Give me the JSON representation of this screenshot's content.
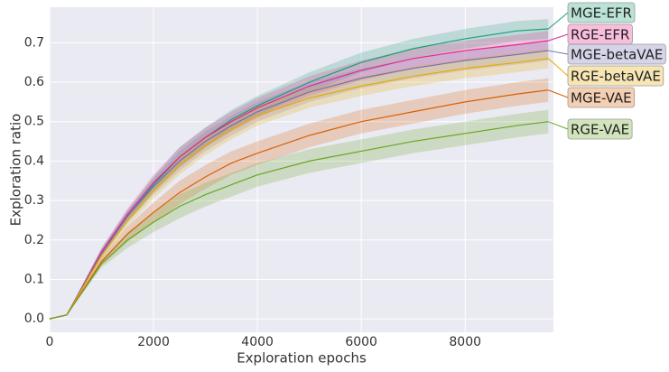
{
  "chart_data": {
    "type": "line",
    "xlabel": "Exploration epochs",
    "ylabel": "Exploration ratio",
    "x": [
      0,
      330,
      1000,
      1500,
      2000,
      2500,
      3000,
      3500,
      4000,
      5000,
      6000,
      7000,
      8000,
      9000,
      9600
    ],
    "xlim": [
      0,
      9700
    ],
    "xticks": [
      0,
      2000,
      4000,
      6000,
      8000
    ],
    "ylim": [
      -0.034,
      0.79
    ],
    "yticks": [
      {
        "value": 0,
        "label": "0.0"
      },
      0.1,
      0.2,
      0.3,
      0.4,
      0.5,
      0.6,
      0.7
    ],
    "grid": true,
    "series": [
      {
        "name": "MGE-EFR",
        "color": "#1b9e77",
        "values": [
          0,
          0.01,
          0.17,
          0.26,
          0.34,
          0.41,
          0.46,
          0.505,
          0.54,
          0.6,
          0.65,
          0.685,
          0.71,
          0.73,
          0.735
        ],
        "error": [
          0,
          0,
          0.01,
          0.015,
          0.02,
          0.025,
          0.025,
          0.025,
          0.025,
          0.025,
          0.025,
          0.025,
          0.025,
          0.025,
          0.025
        ]
      },
      {
        "name": "RGE-EFR",
        "color": "#e7298a",
        "values": [
          0,
          0.01,
          0.17,
          0.265,
          0.345,
          0.41,
          0.46,
          0.5,
          0.535,
          0.59,
          0.63,
          0.66,
          0.68,
          0.695,
          0.705
        ],
        "error": [
          0,
          0,
          0.01,
          0.015,
          0.02,
          0.025,
          0.025,
          0.025,
          0.025,
          0.025,
          0.025,
          0.025,
          0.025,
          0.025,
          0.025
        ]
      },
      {
        "name": "MGE-betaVAE",
        "color": "#7570b3",
        "values": [
          0,
          0.01,
          0.165,
          0.26,
          0.335,
          0.4,
          0.45,
          0.49,
          0.525,
          0.575,
          0.61,
          0.635,
          0.655,
          0.67,
          0.68
        ],
        "error": [
          0,
          0,
          0.01,
          0.015,
          0.02,
          0.025,
          0.025,
          0.025,
          0.025,
          0.025,
          0.025,
          0.025,
          0.025,
          0.025,
          0.025
        ]
      },
      {
        "name": "RGE-betaVAE",
        "color": "#e6ab02",
        "values": [
          0,
          0.01,
          0.16,
          0.25,
          0.325,
          0.39,
          0.44,
          0.48,
          0.515,
          0.56,
          0.59,
          0.615,
          0.635,
          0.65,
          0.66
        ],
        "error": [
          0,
          0,
          0.01,
          0.015,
          0.02,
          0.025,
          0.025,
          0.025,
          0.025,
          0.025,
          0.025,
          0.025,
          0.025,
          0.025,
          0.025
        ]
      },
      {
        "name": "MGE-VAE",
        "color": "#d95f02",
        "values": [
          0,
          0.01,
          0.145,
          0.215,
          0.27,
          0.32,
          0.36,
          0.395,
          0.42,
          0.465,
          0.5,
          0.525,
          0.55,
          0.57,
          0.58
        ],
        "error": [
          0,
          0,
          0.01,
          0.02,
          0.025,
          0.03,
          0.03,
          0.03,
          0.03,
          0.03,
          0.03,
          0.03,
          0.03,
          0.03,
          0.03
        ]
      },
      {
        "name": "RGE-VAE",
        "color": "#66a61e",
        "values": [
          0,
          0.01,
          0.14,
          0.2,
          0.245,
          0.285,
          0.315,
          0.34,
          0.365,
          0.4,
          0.425,
          0.45,
          0.47,
          0.49,
          0.5
        ],
        "error": [
          0,
          0,
          0.01,
          0.02,
          0.025,
          0.03,
          0.03,
          0.03,
          0.03,
          0.03,
          0.03,
          0.03,
          0.03,
          0.03,
          0.03
        ]
      }
    ]
  }
}
